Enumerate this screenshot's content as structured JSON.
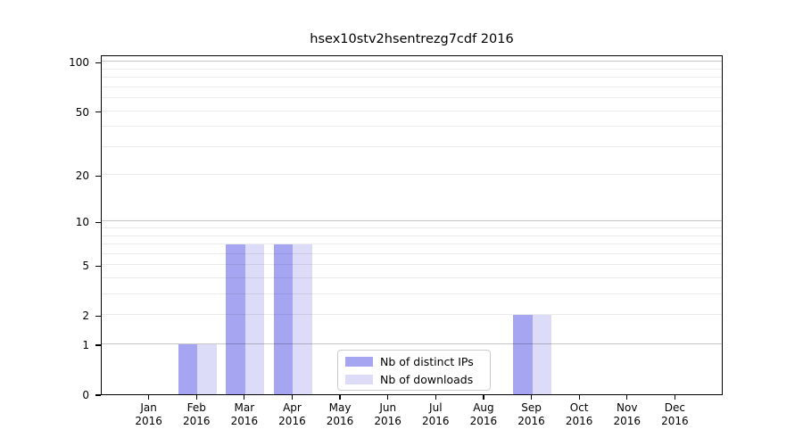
{
  "chart_data": {
    "type": "bar",
    "title": "hsex10stv2hsentrezg7cdf 2016",
    "categories": [
      "Jan",
      "Feb",
      "Mar",
      "Apr",
      "May",
      "Jun",
      "Jul",
      "Aug",
      "Sep",
      "Oct",
      "Nov",
      "Dec"
    ],
    "year": "2016",
    "series": [
      {
        "name": "Nb of distinct IPs",
        "color": "#a5a5f2",
        "values": [
          0,
          1,
          7,
          7,
          0,
          0,
          0,
          0,
          2,
          0,
          0,
          0
        ]
      },
      {
        "name": "Nb of downloads",
        "color": "#dcdcf8",
        "values": [
          0,
          1,
          7,
          7,
          0,
          0,
          0,
          0,
          2,
          0,
          0,
          0
        ]
      }
    ],
    "yscale": "log1p",
    "ylim": [
      0,
      111
    ],
    "yticks": [
      100,
      50,
      20,
      10,
      5,
      2,
      1,
      0
    ],
    "yticklabels": [
      "100",
      "50",
      "20",
      "10",
      "5",
      "2",
      "1",
      "0"
    ],
    "major_gridlines": [
      1,
      10,
      100
    ],
    "minor_gridlines": [
      2,
      3,
      4,
      5,
      6,
      7,
      8,
      9,
      20,
      30,
      40,
      50,
      60,
      70,
      80,
      90
    ],
    "grid": true,
    "legend_position": "lower center"
  }
}
